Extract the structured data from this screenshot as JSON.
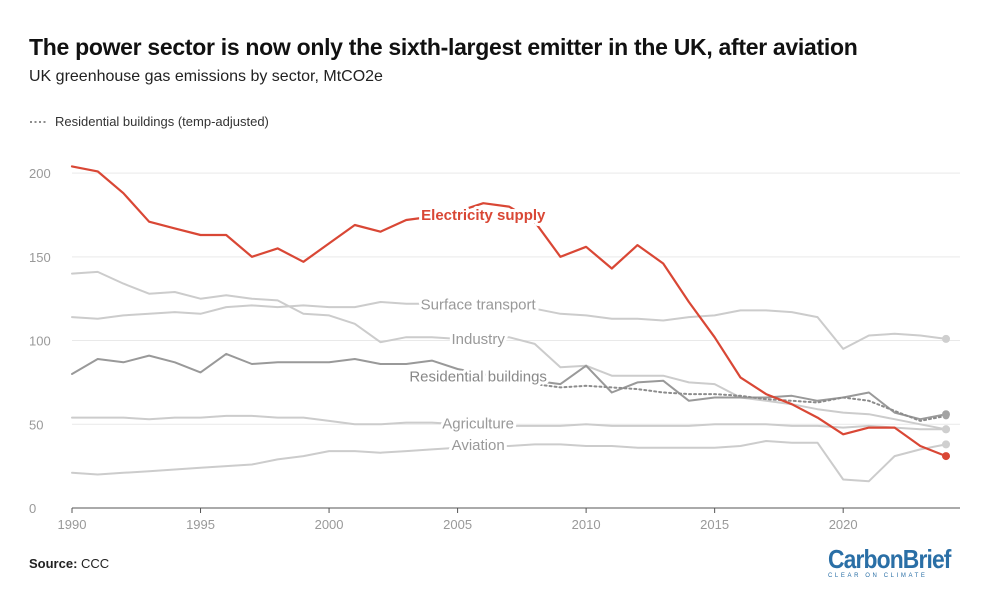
{
  "title": "The power sector is now only the sixth-largest emitter in the UK, after aviation",
  "subtitle": "UK greenhouse gas emissions by sector, MtCO2e",
  "legend_label": "Residential buildings (temp-adjusted)",
  "source_label": "Source:",
  "source_value": "CCC",
  "logo": {
    "main": "CarbonBrief",
    "tagline": "CLEAR ON CLIMATE"
  },
  "colors": {
    "highlight": "#d94735",
    "light": "#cccccc",
    "dark": "#999999",
    "dotted": "#8c8c8c",
    "logo": "#2a6fa6"
  },
  "chart_data": {
    "type": "line",
    "title": "The power sector is now only the sixth-largest emitter in the UK, after aviation",
    "xlabel": "",
    "ylabel": "MtCO2e",
    "xlim": [
      1990,
      2024
    ],
    "ylim": [
      0,
      210
    ],
    "xticks": [
      1990,
      1995,
      2000,
      2005,
      2010,
      2015,
      2020
    ],
    "yticks": [
      0,
      50,
      100,
      150,
      200
    ],
    "x": [
      1990,
      1991,
      1992,
      1993,
      1994,
      1995,
      1996,
      1997,
      1998,
      1999,
      2000,
      2001,
      2002,
      2003,
      2004,
      2005,
      2006,
      2007,
      2008,
      2009,
      2010,
      2011,
      2012,
      2013,
      2014,
      2015,
      2016,
      2017,
      2018,
      2019,
      2020,
      2021,
      2022,
      2023,
      2024
    ],
    "series": [
      {
        "name": "Electricity supply",
        "style": "highlight",
        "values": [
          204,
          201,
          188,
          171,
          167,
          163,
          163,
          150,
          155,
          147,
          158,
          169,
          165,
          172,
          174,
          177,
          182,
          180,
          171,
          150,
          156,
          143,
          157,
          146,
          123,
          102,
          78,
          68,
          62,
          54,
          44,
          48,
          48,
          37,
          31
        ]
      },
      {
        "name": "Surface transport",
        "style": "light",
        "values": [
          114,
          113,
          115,
          116,
          117,
          116,
          120,
          121,
          120,
          121,
          120,
          120,
          123,
          122,
          122,
          121,
          121,
          121,
          119,
          116,
          115,
          113,
          113,
          112,
          114,
          115,
          118,
          118,
          117,
          114,
          95,
          103,
          104,
          103,
          101
        ]
      },
      {
        "name": "Industry",
        "style": "light",
        "values": [
          140,
          141,
          134,
          128,
          129,
          125,
          127,
          125,
          124,
          116,
          115,
          110,
          99,
          102,
          102,
          101,
          102,
          102,
          98,
          84,
          85,
          79,
          79,
          79,
          75,
          74,
          66,
          64,
          62,
          59,
          57,
          56,
          53,
          50,
          47
        ]
      },
      {
        "name": "Residential buildings",
        "style": "dark",
        "values": [
          80,
          89,
          87,
          91,
          87,
          81,
          92,
          86,
          87,
          87,
          87,
          89,
          86,
          86,
          88,
          83,
          80,
          76,
          76,
          74,
          85,
          69,
          75,
          76,
          64,
          66,
          66,
          66,
          67,
          64,
          66,
          69,
          57,
          53,
          56
        ]
      },
      {
        "name": "Agriculture",
        "style": "light",
        "values": [
          54,
          54,
          54,
          53,
          54,
          54,
          55,
          55,
          54,
          54,
          52,
          50,
          50,
          51,
          51,
          50,
          49,
          49,
          49,
          49,
          50,
          49,
          49,
          49,
          49,
          50,
          50,
          50,
          49,
          49,
          48,
          49,
          48,
          47,
          47
        ]
      },
      {
        "name": "Aviation",
        "style": "light",
        "values": [
          21,
          20,
          21,
          22,
          23,
          24,
          25,
          26,
          29,
          31,
          34,
          34,
          33,
          34,
          35,
          36,
          37,
          37,
          38,
          38,
          37,
          37,
          36,
          36,
          36,
          36,
          37,
          40,
          39,
          39,
          17,
          16,
          31,
          35,
          38
        ]
      },
      {
        "name": "Residential buildings (temp-adjusted)",
        "style": "dotted",
        "x": [
          2008,
          2009,
          2010,
          2011,
          2012,
          2013,
          2014,
          2015,
          2016,
          2017,
          2018,
          2019,
          2020,
          2021,
          2022,
          2023,
          2024
        ],
        "values": [
          74,
          72,
          73,
          72,
          71,
          69,
          68,
          68,
          67,
          65,
          64,
          63,
          66,
          64,
          58,
          52,
          55
        ]
      }
    ],
    "labels": [
      {
        "series": "Electricity supply",
        "text": "Electricity supply",
        "at": [
          2006,
          175
        ]
      },
      {
        "series": "Surface transport",
        "text": "Surface transport",
        "at": [
          2005.8,
          121.5
        ]
      },
      {
        "series": "Industry",
        "text": "Industry",
        "at": [
          2005.8,
          101
        ]
      },
      {
        "series": "Residential buildings",
        "text": "Residential buildings",
        "at": [
          2005.8,
          78.5
        ]
      },
      {
        "series": "Agriculture",
        "text": "Agriculture",
        "at": [
          2005.8,
          50.5
        ]
      },
      {
        "series": "Aviation",
        "text": "Aviation",
        "at": [
          2005.8,
          37.5
        ]
      }
    ]
  }
}
